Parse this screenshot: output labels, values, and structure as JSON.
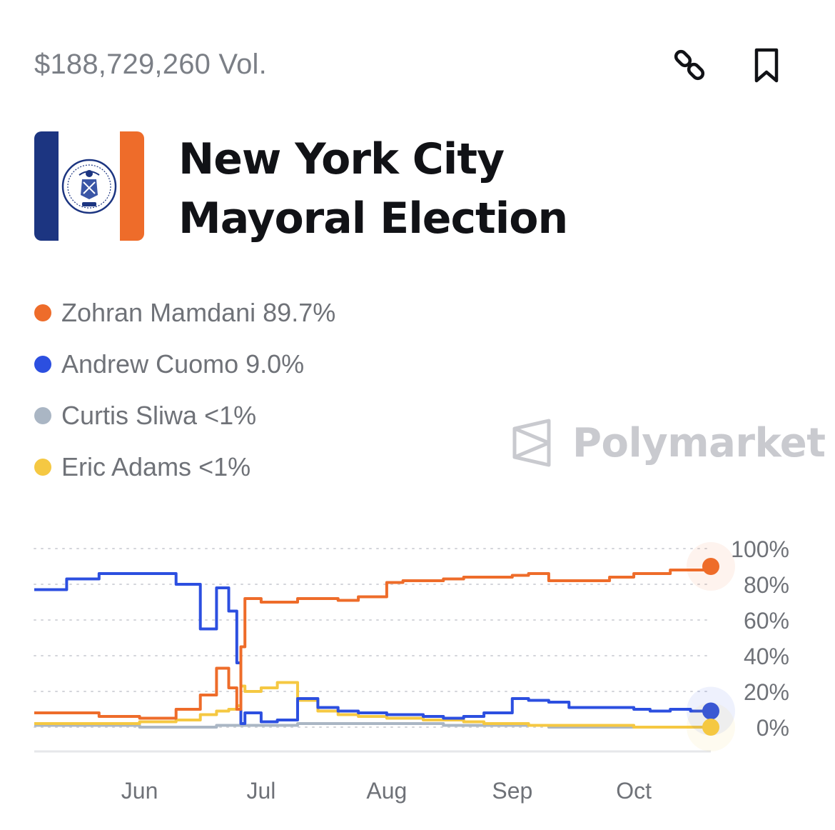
{
  "header": {
    "volume": "$188,729,260 Vol.",
    "link_icon": "link-icon",
    "bookmark_icon": "bookmark-icon"
  },
  "market": {
    "title": "New York City Mayoral Election",
    "flag_colors": {
      "left": "#1c3581",
      "center": "#ffffff",
      "right": "#ee6c2a"
    },
    "flag_seal_year": "1625"
  },
  "legend": [
    {
      "name": "Zohran Mamdani",
      "value": "89.7%",
      "color": "#ee6c2a"
    },
    {
      "name": "Andrew Cuomo",
      "value": "9.0%",
      "color": "#2c4fe0"
    },
    {
      "name": "Curtis Sliwa",
      "value": "<1%",
      "color": "#aab6c4"
    },
    {
      "name": "Eric Adams",
      "value": "<1%",
      "color": "#f5c842"
    }
  ],
  "watermark": "Polymarket",
  "chart_data": {
    "type": "line",
    "x_labels": [
      "Jun",
      "Jul",
      "Aug",
      "Sep",
      "Oct"
    ],
    "y_ticks": [
      "100%",
      "80%",
      "60%",
      "40%",
      "20%",
      "0%"
    ],
    "ylim": [
      0,
      100
    ],
    "grid": true,
    "x": [
      "2025-05-06",
      "2025-05-14",
      "2025-05-22",
      "2025-06-01",
      "2025-06-10",
      "2025-06-16",
      "2025-06-20",
      "2025-06-23",
      "2025-06-25",
      "2025-06-26",
      "2025-06-27",
      "2025-07-01",
      "2025-07-05",
      "2025-07-10",
      "2025-07-15",
      "2025-07-20",
      "2025-07-25",
      "2025-08-01",
      "2025-08-05",
      "2025-08-10",
      "2025-08-15",
      "2025-08-20",
      "2025-08-25",
      "2025-09-01",
      "2025-09-05",
      "2025-09-10",
      "2025-09-15",
      "2025-09-20",
      "2025-09-25",
      "2025-10-01",
      "2025-10-05",
      "2025-10-10",
      "2025-10-15",
      "2025-10-20"
    ],
    "series": [
      {
        "name": "Zohran Mamdani",
        "color": "#ee6c2a",
        "values": [
          8,
          8,
          6,
          5,
          10,
          18,
          33,
          22,
          10,
          45,
          72,
          70,
          70,
          72,
          72,
          71,
          73,
          81,
          82,
          82,
          83,
          84,
          84,
          85,
          86,
          82,
          82,
          82,
          84,
          86,
          86,
          88,
          88,
          90
        ]
      },
      {
        "name": "Andrew Cuomo",
        "color": "#2c4fe0",
        "values": [
          77,
          83,
          86,
          86,
          80,
          55,
          78,
          65,
          36,
          2,
          8,
          3,
          4,
          16,
          11,
          9,
          8,
          7,
          7,
          6,
          5,
          6,
          8,
          16,
          15,
          14,
          11,
          11,
          11,
          10,
          9,
          10,
          9,
          9
        ]
      },
      {
        "name": "Curtis Sliwa",
        "color": "#aab6c4",
        "values": [
          1,
          1,
          1,
          0,
          0,
          0,
          1,
          1,
          1,
          1,
          1,
          1,
          1,
          2,
          2,
          2,
          2,
          2,
          2,
          2,
          1,
          1,
          1,
          1,
          1,
          0,
          0,
          0,
          0,
          0,
          0,
          0,
          0,
          0
        ]
      },
      {
        "name": "Eric Adams",
        "color": "#f5c842",
        "values": [
          2,
          2,
          2,
          3,
          4,
          7,
          9,
          10,
          12,
          23,
          20,
          22,
          25,
          15,
          9,
          7,
          6,
          5,
          5,
          4,
          4,
          3,
          2,
          2,
          1,
          1,
          1,
          1,
          1,
          0,
          0,
          0,
          0,
          0
        ]
      }
    ]
  }
}
